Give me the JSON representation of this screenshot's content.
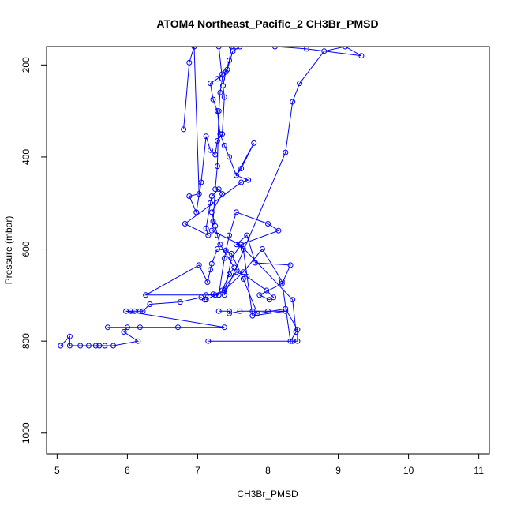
{
  "chart_data": {
    "type": "line",
    "title": "ATOM4 Northeast_Pacific_2 CH3Br_PMSD",
    "xlabel": "CH3Br_PMSD",
    "ylabel": "Pressure (mbar)",
    "xlim": [
      4.85,
      11.15
    ],
    "ylim": [
      1045,
      160
    ],
    "y_reversed": true,
    "grid": false,
    "color": "#0000ff",
    "x_ticks": [
      5,
      6,
      7,
      8,
      9,
      10,
      11
    ],
    "y_ticks": [
      200,
      400,
      600,
      800,
      1000
    ],
    "series": [
      {
        "values": [
          [
            5.05,
            810
          ],
          [
            5.18,
            790
          ],
          [
            5.18,
            810
          ],
          [
            5.33,
            810
          ],
          [
            5.45,
            810
          ],
          [
            5.55,
            810
          ],
          [
            5.6,
            810
          ],
          [
            5.68,
            810
          ],
          [
            5.8,
            810
          ],
          [
            6.15,
            800
          ],
          [
            5.95,
            780
          ],
          [
            6.0,
            770
          ],
          [
            6.18,
            770
          ],
          [
            6.72,
            770
          ],
          [
            5.72,
            770
          ],
          [
            7.38,
            770
          ],
          [
            5.98,
            735
          ],
          [
            6.05,
            735
          ],
          [
            6.1,
            735
          ],
          [
            6.18,
            735
          ],
          [
            6.22,
            735
          ],
          [
            6.32,
            720
          ],
          [
            6.75,
            715
          ],
          [
            7.05,
            705
          ],
          [
            7.1,
            710
          ],
          [
            7.12,
            700
          ],
          [
            7.22,
            698
          ],
          [
            7.3,
            700
          ],
          [
            6.26,
            700
          ],
          [
            7.02,
            635
          ],
          [
            7.14,
            672
          ],
          [
            7.18,
            645
          ],
          [
            7.2,
            632
          ],
          [
            7.28,
            600
          ],
          [
            7.4,
            603
          ],
          [
            7.48,
            610
          ],
          [
            7.65,
            665
          ],
          [
            7.85,
            740
          ],
          [
            8.25,
            730
          ],
          [
            8.42,
            775
          ],
          [
            8.42,
            800
          ],
          [
            8.35,
            800
          ],
          [
            7.15,
            800
          ]
        ]
      },
      {
        "values": [
          [
            7.3,
            735
          ],
          [
            7.45,
            735
          ],
          [
            7.45,
            740
          ],
          [
            7.6,
            735
          ],
          [
            7.78,
            735
          ],
          [
            8.0,
            735
          ],
          [
            8.25,
            735
          ],
          [
            7.78,
            745
          ],
          [
            7.65,
            600
          ],
          [
            7.55,
            590
          ],
          [
            7.7,
            570
          ],
          [
            7.82,
            630
          ],
          [
            8.32,
            635
          ],
          [
            8.2,
            675
          ],
          [
            7.88,
            700
          ],
          [
            8.02,
            710
          ],
          [
            8.08,
            705
          ],
          [
            7.98,
            690
          ],
          [
            7.7,
            660
          ],
          [
            7.55,
            650
          ],
          [
            7.35,
            690
          ],
          [
            7.45,
            655
          ],
          [
            7.52,
            640
          ],
          [
            7.32,
            590
          ],
          [
            7.28,
            570
          ],
          [
            7.25,
            550
          ],
          [
            7.2,
            520
          ],
          [
            7.35,
            480
          ],
          [
            7.3,
            470
          ],
          [
            7.2,
            485
          ],
          [
            7.18,
            500
          ],
          [
            7.12,
            555
          ],
          [
            7.15,
            570
          ],
          [
            6.82,
            545
          ],
          [
            7.62,
            455
          ],
          [
            7.72,
            450
          ],
          [
            7.55,
            440
          ],
          [
            7.62,
            425
          ],
          [
            7.8,
            370
          ],
          [
            7.55,
            440
          ],
          [
            7.45,
            400
          ],
          [
            7.38,
            375
          ],
          [
            7.32,
            350
          ],
          [
            7.28,
            300
          ],
          [
            7.22,
            275
          ],
          [
            7.18,
            240
          ],
          [
            7.28,
            230
          ],
          [
            7.35,
            220
          ],
          [
            7.42,
            210
          ],
          [
            7.5,
            170
          ],
          [
            7.6,
            160
          ]
        ]
      },
      {
        "values": [
          [
            6.8,
            340
          ],
          [
            6.88,
            195
          ],
          [
            6.95,
            160
          ],
          [
            7.02,
            480
          ],
          [
            6.88,
            485
          ],
          [
            6.98,
            520
          ],
          [
            7.05,
            455
          ],
          [
            7.12,
            355
          ],
          [
            7.18,
            385
          ],
          [
            7.25,
            395
          ],
          [
            7.28,
            365
          ],
          [
            7.35,
            350
          ],
          [
            7.38,
            270
          ],
          [
            7.36,
            245
          ],
          [
            7.4,
            215
          ],
          [
            7.45,
            190
          ],
          [
            7.48,
            160
          ]
        ]
      },
      {
        "values": [
          [
            7.3,
            700
          ],
          [
            7.38,
            620
          ],
          [
            7.45,
            570
          ],
          [
            7.55,
            520
          ],
          [
            8.0,
            545
          ],
          [
            8.15,
            560
          ],
          [
            7.62,
            590
          ],
          [
            7.48,
            620
          ],
          [
            7.38,
            700
          ],
          [
            8.25,
            390
          ],
          [
            8.35,
            280
          ],
          [
            8.45,
            240
          ],
          [
            8.8,
            170
          ],
          [
            9.1,
            160
          ],
          [
            9.33,
            180
          ],
          [
            8.55,
            165
          ],
          [
            8.1,
            160
          ],
          [
            7.55,
            160
          ]
        ]
      },
      {
        "values": [
          [
            7.12,
            710
          ],
          [
            7.25,
            700
          ],
          [
            7.38,
            690
          ],
          [
            7.65,
            650
          ],
          [
            7.92,
            600
          ],
          [
            8.2,
            670
          ],
          [
            8.32,
            800
          ],
          [
            8.4,
            780
          ],
          [
            8.35,
            710
          ],
          [
            7.6,
            590
          ],
          [
            7.2,
            560
          ],
          [
            7.22,
            540
          ],
          [
            7.25,
            470
          ],
          [
            7.28,
            420
          ],
          [
            7.3,
            300
          ],
          [
            7.32,
            260
          ],
          [
            7.35,
            230
          ],
          [
            7.3,
            160
          ]
        ]
      }
    ]
  }
}
